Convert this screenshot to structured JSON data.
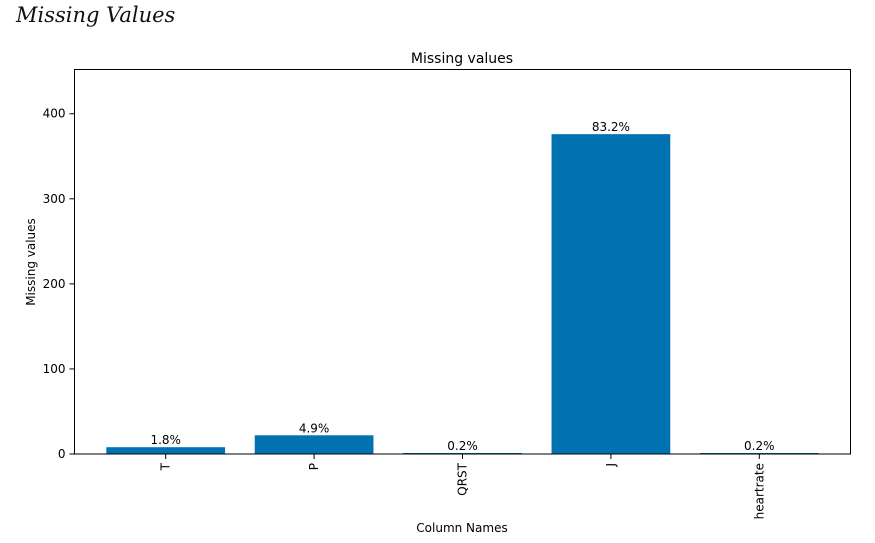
{
  "heading": "Missing Values",
  "chart_data": {
    "type": "bar",
    "title": "Missing values",
    "xlabel": "Column Names",
    "ylabel": "Missing values",
    "categories": [
      "T",
      "P",
      "QRST",
      "J",
      "heartrate"
    ],
    "values": [
      8,
      22,
      1,
      376,
      1
    ],
    "bar_labels": [
      "1.8%",
      "4.9%",
      "0.2%",
      "83.2%",
      "0.2%"
    ],
    "ylim": [
      0,
      452
    ],
    "yticks": [
      0,
      100,
      200,
      300,
      400
    ],
    "xtick_rotation": "vertical",
    "bar_color": "#0072b2",
    "grid": false,
    "legend": "none"
  }
}
